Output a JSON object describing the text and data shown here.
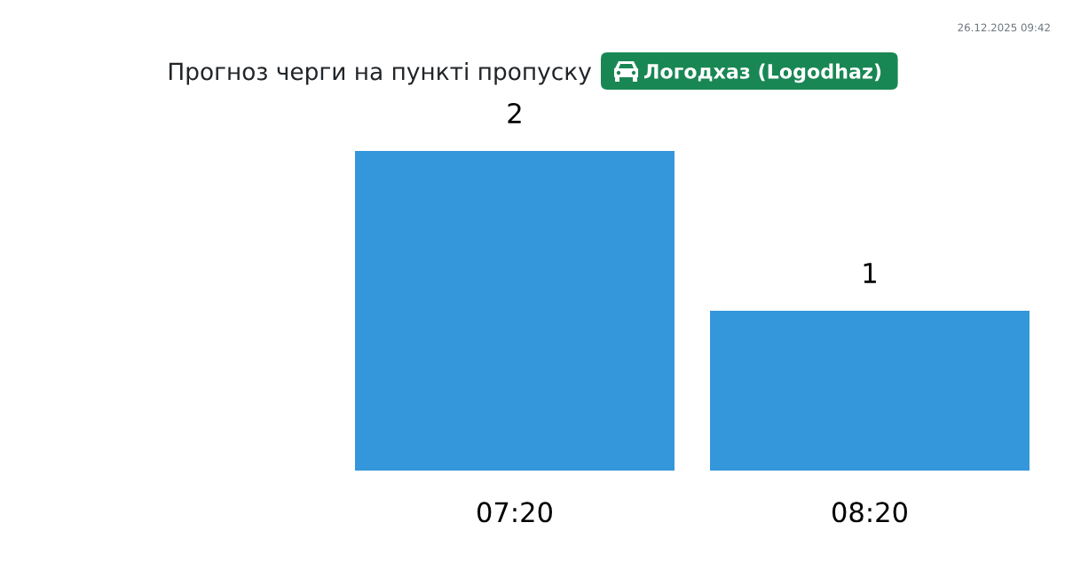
{
  "chart_data": {
    "type": "bar",
    "title": "Прогноз черги на пункті пропуску",
    "subtitle": "Логодхаз (Logodhaz)",
    "annotations": [
      "26.12.2025 09:42"
    ],
    "categories": [
      "07:20",
      "08:20"
    ],
    "values": [
      2,
      1
    ],
    "colors": [
      "#3597db",
      "#3597db"
    ],
    "ylim": [
      0,
      2
    ],
    "data_labels": true,
    "tick_labels": "x"
  }
}
